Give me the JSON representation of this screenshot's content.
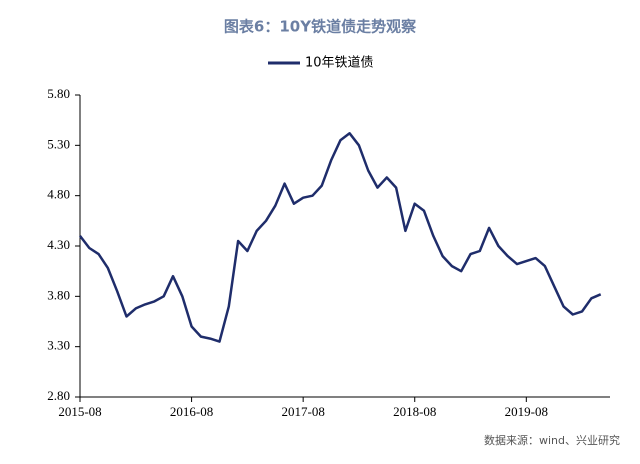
{
  "chart_data": {
    "type": "line",
    "title": "图表6：10Y铁道债走势观察",
    "source": "数据来源：wind、兴业研究",
    "x": [
      "2015-08",
      "2015-09",
      "2015-10",
      "2015-11",
      "2015-12",
      "2016-01",
      "2016-02",
      "2016-03",
      "2016-04",
      "2016-05",
      "2016-06",
      "2016-07",
      "2016-08",
      "2016-09",
      "2016-10",
      "2016-11",
      "2016-12",
      "2017-01",
      "2017-02",
      "2017-03",
      "2017-04",
      "2017-05",
      "2017-06",
      "2017-07",
      "2017-08",
      "2017-09",
      "2017-10",
      "2017-11",
      "2017-12",
      "2018-01",
      "2018-02",
      "2018-03",
      "2018-04",
      "2018-05",
      "2018-06",
      "2018-07",
      "2018-08",
      "2018-09",
      "2018-10",
      "2018-11",
      "2018-12",
      "2019-01",
      "2019-02",
      "2019-03",
      "2019-04",
      "2019-05",
      "2019-06",
      "2019-07",
      "2019-08",
      "2019-09",
      "2019-10",
      "2019-11",
      "2019-12",
      "2020-01",
      "2020-02",
      "2020-03",
      "2020-04"
    ],
    "series": [
      {
        "name": "10年铁道债",
        "color": "#1f2d6b",
        "values": [
          4.4,
          4.28,
          4.22,
          4.08,
          3.85,
          3.6,
          3.68,
          3.72,
          3.75,
          3.8,
          4.0,
          3.8,
          3.5,
          3.4,
          3.38,
          3.35,
          3.7,
          4.35,
          4.25,
          4.45,
          4.55,
          4.7,
          4.92,
          4.72,
          4.78,
          4.8,
          4.9,
          5.15,
          5.35,
          5.42,
          5.3,
          5.05,
          4.88,
          4.98,
          4.88,
          4.45,
          4.72,
          4.65,
          4.4,
          4.2,
          4.1,
          4.05,
          4.22,
          4.25,
          4.48,
          4.3,
          4.2,
          4.12,
          4.15,
          4.18,
          4.1,
          3.9,
          3.7,
          3.62,
          3.65,
          3.78,
          3.82
        ]
      }
    ],
    "xlim": [
      "2015-08",
      "2020-05"
    ],
    "xticks": [
      "2015-08",
      "2016-08",
      "2017-08",
      "2018-08",
      "2019-08"
    ],
    "ylim": [
      2.8,
      5.8
    ],
    "yticks": [
      {
        "value": 2.8,
        "label": "2.80"
      },
      {
        "value": 3.3,
        "label": "3.30"
      },
      {
        "value": 3.8,
        "label": "3.80"
      },
      {
        "value": 4.3,
        "label": "4.30"
      },
      {
        "value": 4.8,
        "label": "4.80"
      },
      {
        "value": 5.3,
        "label": "5.30"
      },
      {
        "value": 5.8,
        "label": "5.80"
      }
    ],
    "legend": "top"
  }
}
